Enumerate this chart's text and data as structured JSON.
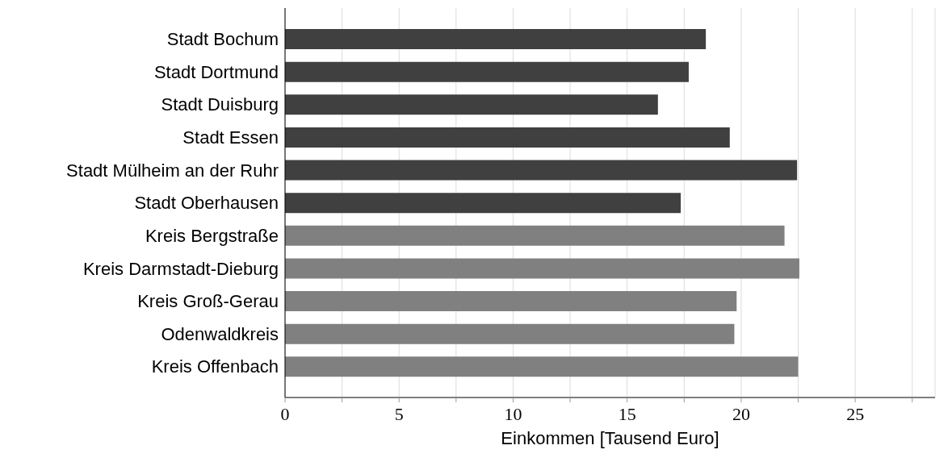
{
  "chart_data": {
    "type": "bar",
    "orientation": "horizontal",
    "xlabel": "Einkommen [Tausend Euro]",
    "categories": [
      "Stadt Bochum",
      "Stadt Dortmund",
      "Stadt Duisburg",
      "Stadt Essen",
      "Stadt Mülheim an der Ruhr",
      "Stadt Oberhausen",
      "Kreis Bergstraße",
      "Kreis Darmstadt-Dieburg",
      "Kreis Groß-Gerau",
      "Odenwaldkreis",
      "Kreis Offenbach"
    ],
    "values": [
      18.45,
      17.7,
      16.35,
      19.5,
      22.45,
      17.35,
      21.9,
      22.55,
      19.8,
      19.7,
      22.5
    ],
    "colors": [
      "#404040",
      "#404040",
      "#404040",
      "#404040",
      "#404040",
      "#404040",
      "#808080",
      "#808080",
      "#808080",
      "#808080",
      "#808080"
    ],
    "xlim": [
      0,
      28.5
    ],
    "xticks": [
      0,
      {
        "value": 2.5,
        "label": null
      },
      5,
      {
        "value": 7.5,
        "label": null
      },
      10,
      {
        "value": 12.5,
        "label": null
      },
      15,
      {
        "value": 17.5,
        "label": null
      },
      20,
      {
        "value": 22.5,
        "label": null
      },
      25,
      {
        "value": 27.5,
        "label": null
      }
    ],
    "grid": "x"
  }
}
